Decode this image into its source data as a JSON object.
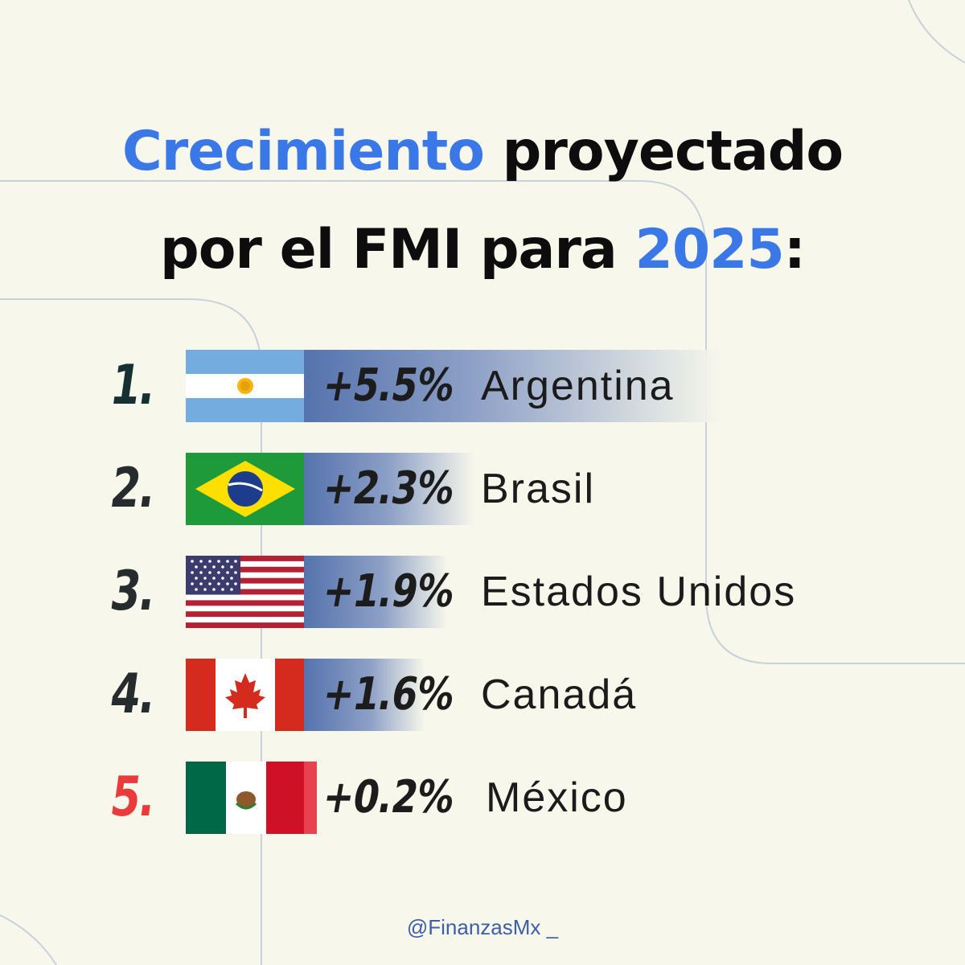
{
  "title": {
    "line1_highlight": "Crecimiento",
    "line1_rest": " proyectado",
    "line2_start": "por el FMI para ",
    "line2_highlight": "2025",
    "line2_end": ":"
  },
  "ranking": [
    {
      "rank": "1.",
      "growth": "+5.5%",
      "country": "Argentina",
      "flag": "argentina-flag",
      "growth_value": 5.5
    },
    {
      "rank": "2.",
      "growth": "+2.3%",
      "country": "Brasil",
      "flag": "brazil-flag",
      "growth_value": 2.3
    },
    {
      "rank": "3.",
      "growth": "+1.9%",
      "country": "Estados Unidos",
      "flag": "usa-flag",
      "growth_value": 1.9
    },
    {
      "rank": "4.",
      "growth": "+1.6%",
      "country": "Canadá",
      "flag": "canada-flag",
      "growth_value": 1.6
    },
    {
      "rank": "5.",
      "growth": "+0.2%",
      "country": "México",
      "flag": "mexico-flag",
      "growth_value": 0.2
    }
  ],
  "footer": "@FinanzasMx _",
  "colors": {
    "accent": "#3b78e7",
    "background": "#f7f7eb",
    "bar": "#5b78b4",
    "highlight_rank": "#ea3b3b"
  }
}
